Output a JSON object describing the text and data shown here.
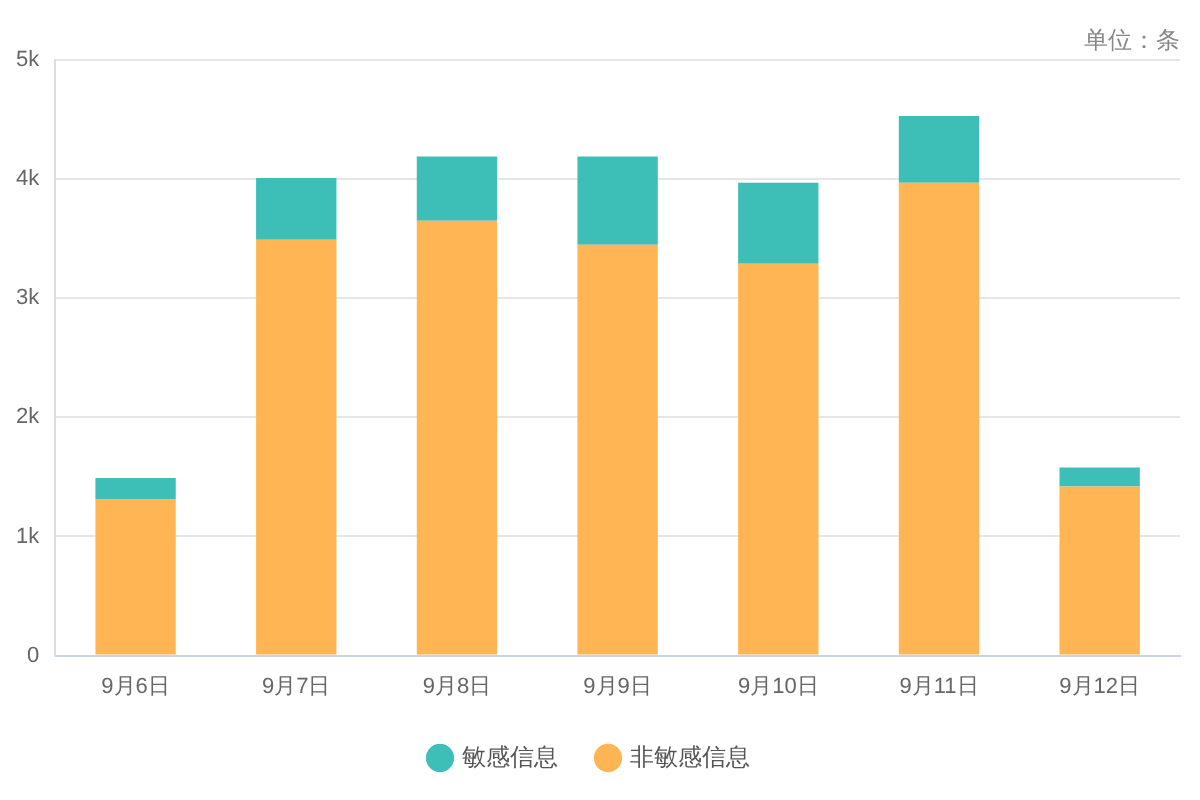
{
  "chart_data": {
    "type": "bar",
    "stacked": true,
    "categories": [
      "9月6日",
      "9月7日",
      "9月8日",
      "9月9日",
      "9月10日",
      "9月11日",
      "9月12日"
    ],
    "series": [
      {
        "name": "非敏感信息",
        "color": "#ffb554",
        "values": [
          1310,
          3490,
          3650,
          3450,
          3290,
          3970,
          1420
        ]
      },
      {
        "name": "敏感信息",
        "color": "#3dbfb8",
        "values": [
          180,
          520,
          540,
          740,
          680,
          560,
          160
        ]
      }
    ],
    "ylim": [
      0,
      5000
    ],
    "yticks": [
      0,
      {
        "value": 1000,
        "label": "1k"
      },
      {
        "value": 2000,
        "label": "2k"
      },
      {
        "value": 3000,
        "label": "3k"
      },
      {
        "value": 4000,
        "label": "4k"
      },
      {
        "value": 5000,
        "label": "5k"
      }
    ],
    "grid": "y",
    "legend": "bottom",
    "annotations": [
      "单位：条"
    ]
  }
}
